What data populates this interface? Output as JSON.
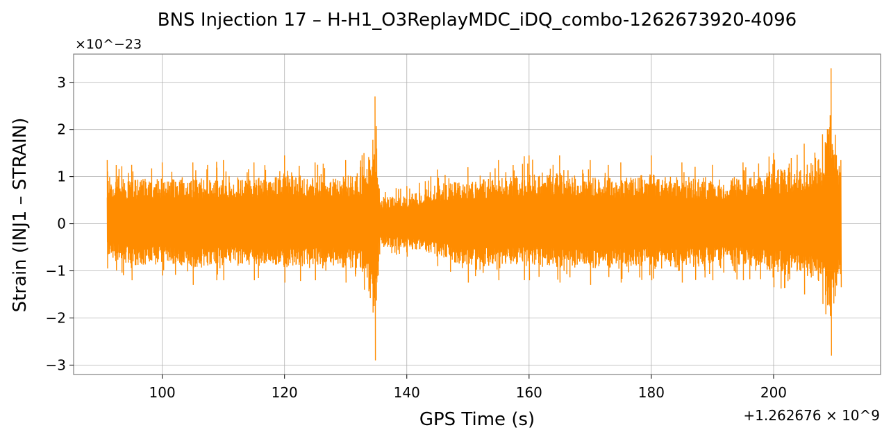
{
  "chart_data": {
    "type": "line",
    "title": "BNS Injection 17 – H-H1_O3ReplayMDC_iDQ_combo-1262673920-4096",
    "xlabel": "GPS Time (s)",
    "ylabel": "Strain (INJ1 – STRAIN)",
    "x_offset_label": "+1.262676 × 10^9",
    "y_scale_label": "×10^−23",
    "xlim": [
      85.5,
      217.5
    ],
    "ylim": [
      -3.2,
      3.6
    ],
    "xticks": [
      100,
      120,
      140,
      160,
      180,
      200
    ],
    "yticks": [
      3,
      2,
      1,
      0,
      -1,
      -2,
      -3
    ],
    "ytick_labels": [
      "3",
      "2",
      "1",
      "0",
      "−1",
      "−2",
      "−3"
    ],
    "grid": true,
    "series": [
      {
        "color": "#ff8c00",
        "x_range": [
          91,
          211
        ],
        "envelope": [
          {
            "x": 91,
            "max": 1.35,
            "min": -0.95
          },
          {
            "x": 95,
            "max": 1.25,
            "min": -1.2
          },
          {
            "x": 100,
            "max": 1.3,
            "min": -1.1
          },
          {
            "x": 105,
            "max": 1.3,
            "min": -1.3
          },
          {
            "x": 110,
            "max": 1.35,
            "min": -1.2
          },
          {
            "x": 115,
            "max": 1.3,
            "min": -1.2
          },
          {
            "x": 120,
            "max": 1.45,
            "min": -1.25
          },
          {
            "x": 125,
            "max": 1.3,
            "min": -1.2
          },
          {
            "x": 130,
            "max": 1.35,
            "min": -1.25
          },
          {
            "x": 133,
            "max": 1.5,
            "min": -1.4
          },
          {
            "x": 134.8,
            "max": 2.7,
            "min": -2.9
          },
          {
            "x": 135.5,
            "max": 0.75,
            "min": -0.65
          },
          {
            "x": 140,
            "max": 0.8,
            "min": -0.7
          },
          {
            "x": 145,
            "max": 1.15,
            "min": -0.9
          },
          {
            "x": 150,
            "max": 1.2,
            "min": -1.25
          },
          {
            "x": 155,
            "max": 1.35,
            "min": -1.2
          },
          {
            "x": 160,
            "max": 1.45,
            "min": -1.2
          },
          {
            "x": 165,
            "max": 1.45,
            "min": -1.25
          },
          {
            "x": 170,
            "max": 1.35,
            "min": -1.3
          },
          {
            "x": 175,
            "max": 1.3,
            "min": -1.25
          },
          {
            "x": 180,
            "max": 1.45,
            "min": -1.2
          },
          {
            "x": 185,
            "max": 1.3,
            "min": -1.25
          },
          {
            "x": 190,
            "max": 1.25,
            "min": -1.2
          },
          {
            "x": 195,
            "max": 1.3,
            "min": -1.2
          },
          {
            "x": 200,
            "max": 1.5,
            "min": -1.35
          },
          {
            "x": 205,
            "max": 1.7,
            "min": -1.5
          },
          {
            "x": 208,
            "max": 1.9,
            "min": -1.7
          },
          {
            "x": 209.4,
            "max": 3.3,
            "min": -2.8
          },
          {
            "x": 211,
            "max": 1.35,
            "min": -1.35
          }
        ]
      }
    ]
  }
}
